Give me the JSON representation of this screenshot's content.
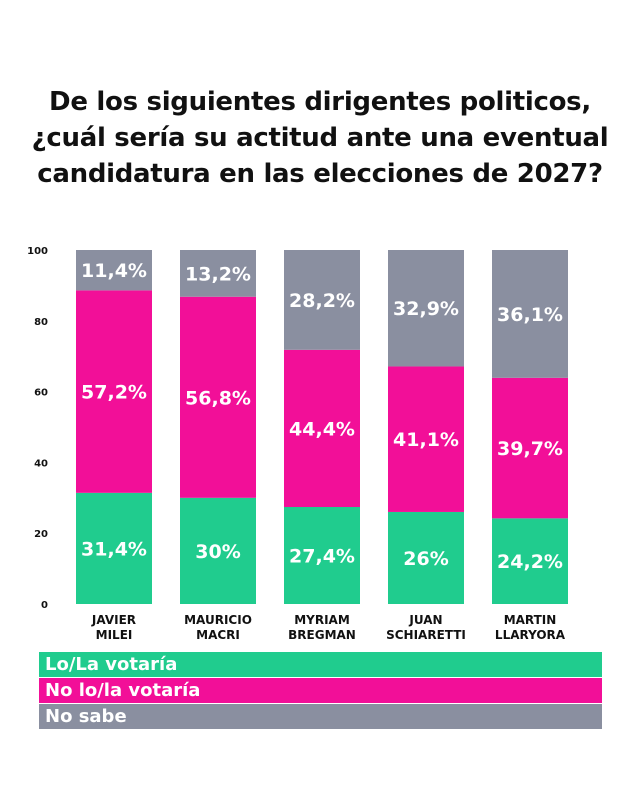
{
  "title_lines": [
    "De los siguientes dirigentes politicos,",
    "¿cuál sería su actitud ante una eventual",
    "candidatura en las elecciones de 2027?"
  ],
  "colors": {
    "votaria": "#20cc8e",
    "no_votaria": "#f20f98",
    "no_sabe": "#8a8fa0"
  },
  "legend": [
    {
      "label": "Lo/La votaría",
      "color": "#20cc8e"
    },
    {
      "label": "No lo/la votaría",
      "color": "#f20f98"
    },
    {
      "label": "No sabe",
      "color": "#8a8fa0"
    }
  ],
  "chart_data": {
    "type": "bar",
    "stacked": true,
    "categories": [
      [
        "JAVIER",
        "MILEI"
      ],
      [
        "MAURICIO",
        "MACRI"
      ],
      [
        "MYRIAM",
        "BREGMAN"
      ],
      [
        "JUAN",
        "SCHIARETTI"
      ],
      [
        "MARTIN",
        "LLARYORA"
      ]
    ],
    "series": [
      {
        "name": "Lo/La votaría",
        "color": "#20cc8e",
        "values": [
          31.4,
          30,
          27.4,
          26,
          24.2
        ],
        "labels": [
          "31,4%",
          "30%",
          "27,4%",
          "26%",
          "24,2%"
        ]
      },
      {
        "name": "No lo/la votaría",
        "color": "#f20f98",
        "values": [
          57.2,
          56.8,
          44.4,
          41.1,
          39.7
        ],
        "labels": [
          "57,2%",
          "56,8%",
          "44,4%",
          "41,1%",
          "39,7%"
        ]
      },
      {
        "name": "No sabe",
        "color": "#8a8fa0",
        "values": [
          11.4,
          13.2,
          28.2,
          32.9,
          36.1
        ],
        "labels": [
          "11,4%",
          "13,2%",
          "28,2%",
          "32,9%",
          "36,1%"
        ]
      }
    ],
    "yticks": [
      "0",
      "20",
      "40",
      "60",
      "80",
      "100"
    ],
    "ylim": [
      0,
      100
    ],
    "grid": false,
    "legend_position": "bottom"
  }
}
